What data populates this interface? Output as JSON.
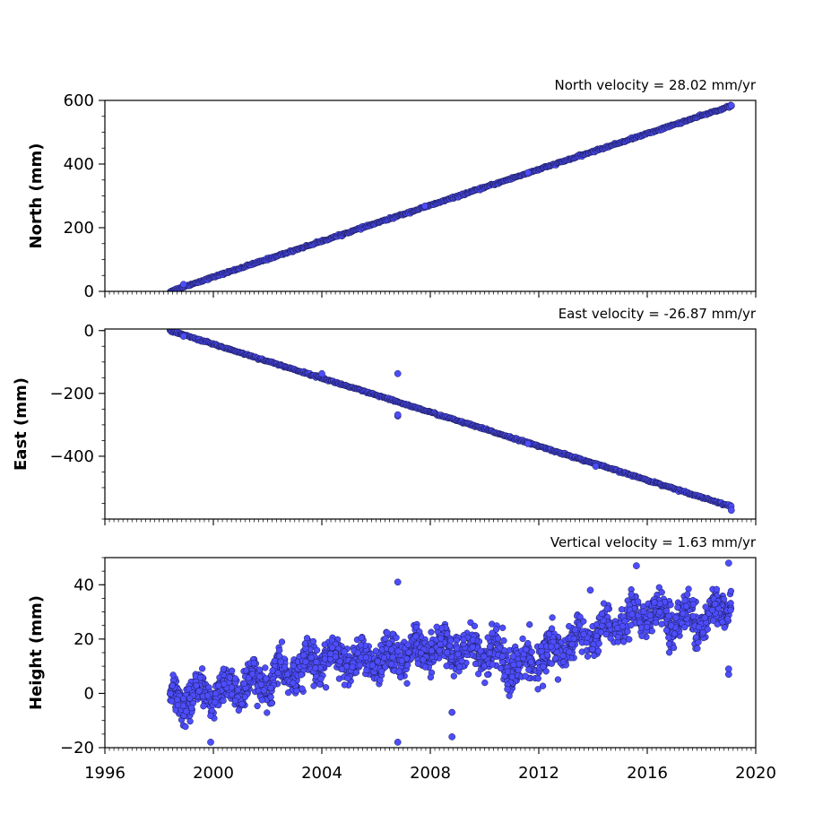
{
  "chart_data": [
    {
      "type": "scatter",
      "title": "North velocity = 28.02 mm/yr",
      "ylabel": "North (mm)",
      "xlim": [
        1996,
        2020
      ],
      "ylim": [
        0,
        600
      ],
      "yticks": [
        "0",
        "200",
        "400",
        "600"
      ],
      "xticks": [],
      "trend": {
        "x": [
          1998.4,
          2019.1
        ],
        "y": [
          0,
          583
        ]
      },
      "outliers": [
        {
          "x": 1998.9,
          "y": 22
        },
        {
          "x": 2007.8,
          "y": 268
        },
        {
          "x": 2011.6,
          "y": 373
        },
        {
          "x": 2019.1,
          "y": 584
        }
      ],
      "marker_color": "#4d4dff",
      "edge_color": "#1a1a4d"
    },
    {
      "type": "scatter",
      "title": "East velocity = -26.87 mm/yr",
      "ylabel": "East (mm)",
      "xlim": [
        1996,
        2020
      ],
      "ylim": [
        -600,
        5
      ],
      "yticks": [
        "0",
        "−200",
        "−400"
      ],
      "xticks": [],
      "trend": {
        "x": [
          1998.4,
          2019.1
        ],
        "y": [
          0,
          -560
        ]
      },
      "outliers": [
        {
          "x": 2006.8,
          "y": -137
        },
        {
          "x": 2006.8,
          "y": -272
        },
        {
          "x": 2006.8,
          "y": -268
        },
        {
          "x": 1998.9,
          "y": -18
        },
        {
          "x": 2004.0,
          "y": -137
        },
        {
          "x": 2011.6,
          "y": -360
        },
        {
          "x": 2014.1,
          "y": -432
        },
        {
          "x": 2019.1,
          "y": -572
        }
      ],
      "marker_color": "#4d4dff",
      "edge_color": "#1a1a4d"
    },
    {
      "type": "scatter",
      "title": "Vertical velocity = 1.63 mm/yr",
      "ylabel": "Height (mm)",
      "xlim": [
        1996,
        2020
      ],
      "ylim": [
        -20,
        50
      ],
      "yticks": [
        "−20",
        "0",
        "20",
        "40"
      ],
      "xticks": [
        "1996",
        "2000",
        "2004",
        "2008",
        "2012",
        "2016",
        "2020"
      ],
      "trend_knots": {
        "x": [
          1998.4,
          2000.0,
          2002.0,
          2004.0,
          2006.0,
          2008.0,
          2010.0,
          2011.0,
          2012.0,
          2014.0,
          2016.0,
          2017.0,
          2018.0,
          2019.1
        ],
        "y": [
          -2,
          0,
          5,
          12,
          12,
          17,
          15,
          10,
          13,
          22,
          30,
          27,
          27,
          33
        ]
      },
      "outliers": [
        {
          "x": 2006.8,
          "y": -18
        },
        {
          "x": 2006.8,
          "y": 41
        },
        {
          "x": 2008.8,
          "y": -7
        },
        {
          "x": 2008.8,
          "y": -16
        },
        {
          "x": 2019.0,
          "y": 48
        },
        {
          "x": 2019.0,
          "y": 7
        },
        {
          "x": 2019.0,
          "y": 9
        },
        {
          "x": 1999.9,
          "y": -18
        },
        {
          "x": 2015.6,
          "y": 47
        },
        {
          "x": 2013.9,
          "y": 38
        }
      ],
      "marker_color": "#4d4dff",
      "edge_color": "#1a1a4d"
    }
  ]
}
